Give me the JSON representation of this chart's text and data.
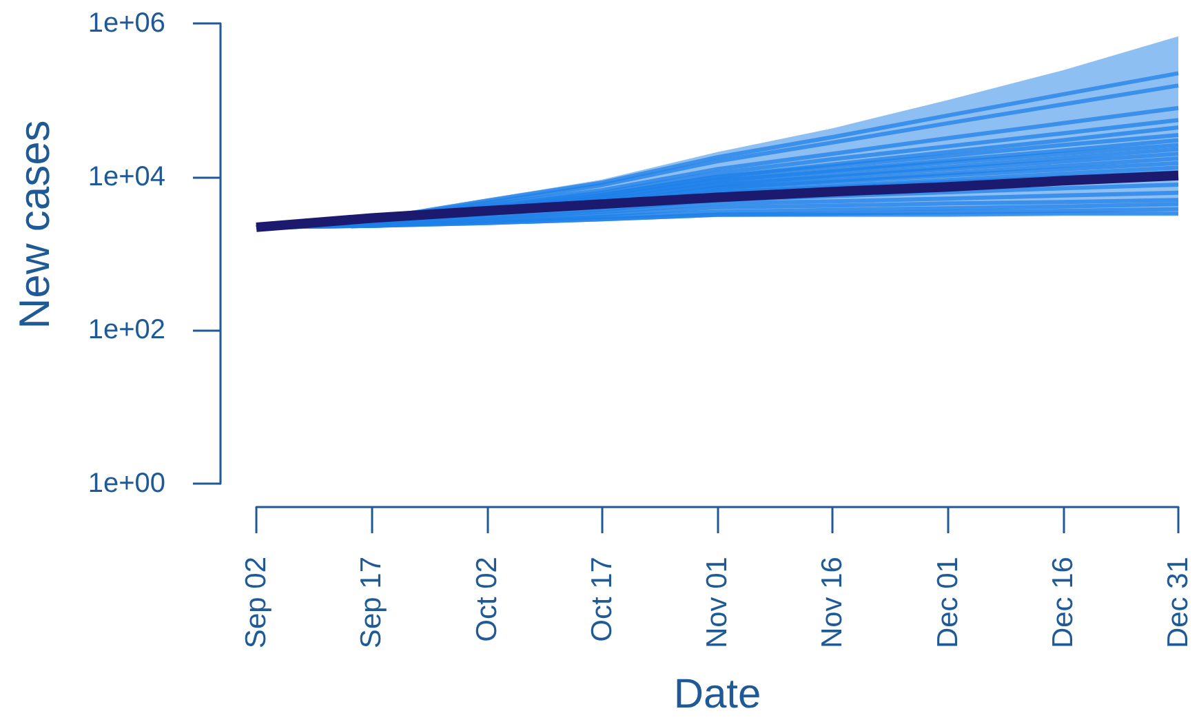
{
  "chart_data": {
    "type": "line",
    "xlabel": "Date",
    "ylabel": "New cases",
    "log": true,
    "marker": "none",
    "x": [
      "--09-02",
      "--09-17",
      "--10-02",
      "--10-17",
      "--11-01",
      "--11-16",
      "--12-01",
      "--12-16",
      "--12-31"
    ],
    "xlim": [
      "--09-02",
      "--12-31"
    ],
    "xticks": [
      {
        "value": "--09-02",
        "label": "Sep 02"
      },
      {
        "value": "--09-17",
        "label": "Sep 17"
      },
      {
        "value": "--10-02",
        "label": "Oct 02"
      },
      {
        "value": "--10-17",
        "label": "Oct 17"
      },
      {
        "value": "--11-01",
        "label": "Nov 01"
      },
      {
        "value": "--11-16",
        "label": "Nov 16"
      },
      {
        "value": "--12-01",
        "label": "Dec 01"
      },
      {
        "value": "--12-16",
        "label": "Dec 16"
      },
      {
        "value": "--12-31",
        "label": "Dec 31"
      }
    ],
    "ylim": [
      1,
      1000000
    ],
    "yticks": [
      {
        "value": 1,
        "label": "1e+00"
      },
      {
        "value": 100,
        "label": "1e+02"
      },
      {
        "value": 10000,
        "label": "1e+04"
      },
      {
        "value": 1000000,
        "label": "1e+06"
      }
    ],
    "series": [
      {
        "color": "#1e80e8",
        "values": [
          2200,
          2800,
          4900,
          8400,
          18000,
          33000,
          63000,
          119000,
          224000
        ]
      },
      {
        "color": "#1e80e8",
        "values": [
          2200,
          2800,
          4600,
          7800,
          16000,
          28000,
          50000,
          88000,
          155000
        ]
      },
      {
        "color": "#1e80e8",
        "values": [
          2200,
          2700,
          4300,
          6700,
          12600,
          20000,
          32000,
          50000,
          79000
        ]
      },
      {
        "color": "#1e80e8",
        "values": [
          2200,
          2700,
          4100,
          6200,
          11200,
          17000,
          25000,
          37000,
          55000
        ]
      },
      {
        "color": "#1e80e8",
        "values": [
          2200,
          2600,
          3900,
          5800,
          10000,
          14500,
          21000,
          30000,
          44000
        ]
      },
      {
        "color": "#1e80e8",
        "values": [
          2200,
          2600,
          3900,
          5800,
          10000,
          13700,
          18800,
          26000,
          35000
        ]
      },
      {
        "color": "#1e80e8",
        "values": [
          2200,
          2600,
          3700,
          5400,
          8900,
          12100,
          16400,
          22000,
          30000
        ]
      },
      {
        "color": "#1e80e8",
        "values": [
          2200,
          2600,
          3700,
          5400,
          8900,
          11700,
          15300,
          20000,
          26000
        ]
      },
      {
        "color": "#1e80e8",
        "values": [
          2200,
          2600,
          3600,
          5000,
          7900,
          10400,
          13500,
          17600,
          23000
        ]
      },
      {
        "color": "#1e80e8",
        "values": [
          2200,
          2600,
          3600,
          5000,
          7900,
          10000,
          12600,
          15800,
          20000
        ],
        "lower": [
          2200,
          2300,
          2500,
          2800,
          3100,
          3100,
          3100,
          3200,
          3200
        ],
        "upper": [
          2200,
          2900,
          5200,
          9200,
          21000,
          43000,
          100000,
          245000,
          680000
        ]
      },
      {
        "color": "#1e80e8",
        "values": [
          2200,
          2500,
          3400,
          4600,
          7100,
          8900,
          11100,
          13900,
          17400
        ]
      },
      {
        "color": "#1e80e8",
        "values": [
          2200,
          2500,
          3400,
          4600,
          7100,
          8600,
          10400,
          12500,
          15100
        ]
      },
      {
        "color": "#1e80e8",
        "values": [
          2200,
          2500,
          3300,
          4300,
          6300,
          7600,
          9100,
          11000,
          13200
        ]
      },
      {
        "color": "#1e80e8",
        "values": [
          2200,
          2500,
          3300,
          4300,
          6300,
          7300,
          8500,
          9900,
          11500
        ]
      },
      {
        "color": "#1e80e8",
        "values": [
          2200,
          2400,
          3000,
          3700,
          5000,
          5600,
          6300,
          7100,
          7900
        ]
      },
      {
        "color": "#1e80e8",
        "values": [
          2200,
          2400,
          2900,
          3500,
          4500,
          4800,
          5200,
          5700,
          6200
        ]
      },
      {
        "color": "#1e80e8",
        "values": [
          2200,
          2300,
          2700,
          3200,
          4000,
          4200,
          4500,
          4700,
          5000
        ]
      },
      {
        "color": "#1e80e8",
        "values": [
          2200,
          2300,
          2600,
          3000,
          3500,
          3700,
          3900,
          4100,
          4400
        ]
      },
      {
        "color": "#1e80e8",
        "values": [
          2200,
          2300,
          2500,
          2800,
          3200,
          3300,
          3500,
          3600,
          3800
        ]
      },
      {
        "color": "#1e80e8",
        "values": [
          2200,
          2300,
          2500,
          2800,
          3200,
          3200,
          3200,
          3300,
          3300
        ]
      },
      {
        "color": "#1b1a6e",
        "values": [
          2200,
          2900,
          3600,
          4400,
          5400,
          6400,
          7400,
          8900,
          10400
        ]
      }
    ]
  }
}
